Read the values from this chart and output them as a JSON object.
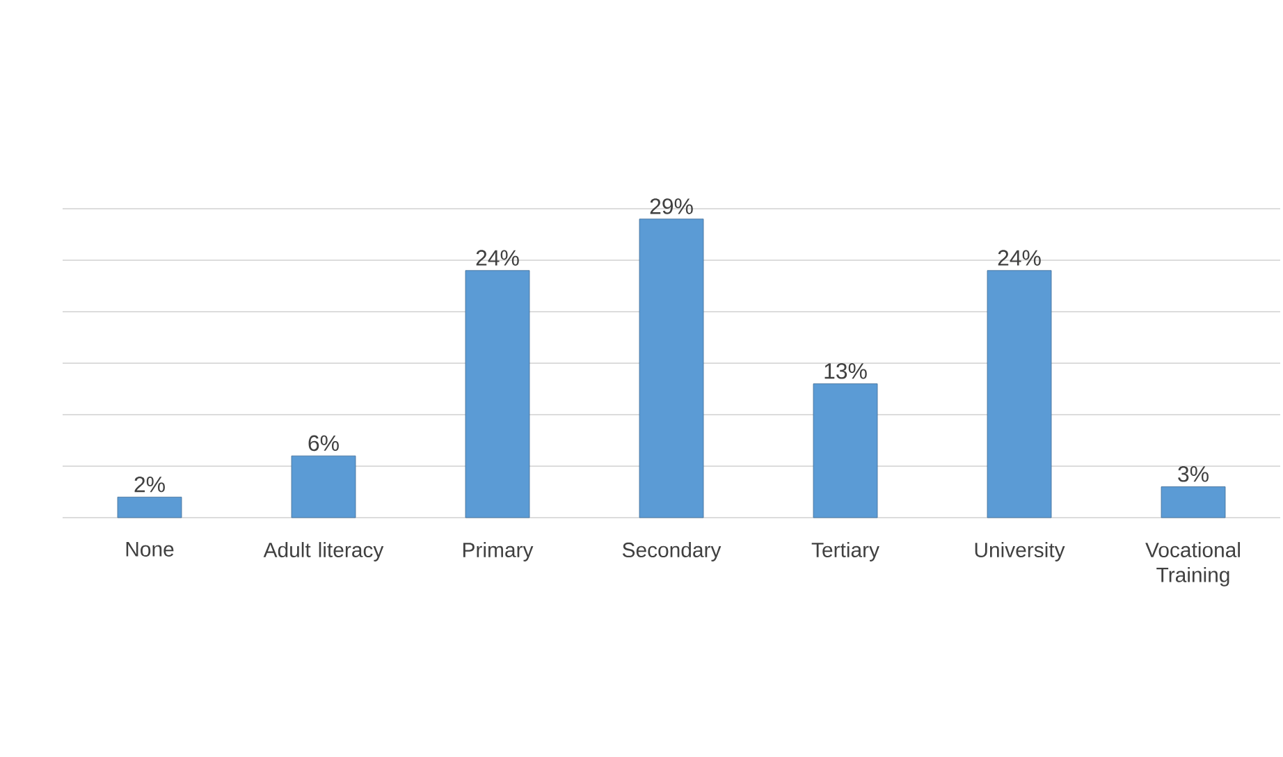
{
  "chart_data": {
    "type": "bar",
    "categories": [
      "None",
      "Adult literacy",
      "Primary",
      "Secondary",
      "Tertiary",
      "University",
      "Vocational Training"
    ],
    "values": [
      2,
      6,
      24,
      29,
      13,
      24,
      3
    ],
    "value_labels": [
      "2%",
      "6%",
      "24%",
      "29%",
      "13%",
      "24%",
      "3%"
    ],
    "color": "#5b9bd5",
    "ylim": [
      0,
      30
    ],
    "yticks": [
      {
        "value": 0,
        "label": null
      },
      {
        "value": 5,
        "label": null
      },
      {
        "value": 10,
        "label": null
      },
      {
        "value": 15,
        "label": null
      },
      {
        "value": 20,
        "label": null
      },
      {
        "value": 25,
        "label": null
      },
      {
        "value": 30,
        "label": null
      }
    ],
    "tick_labels": "x",
    "grid": "y"
  }
}
